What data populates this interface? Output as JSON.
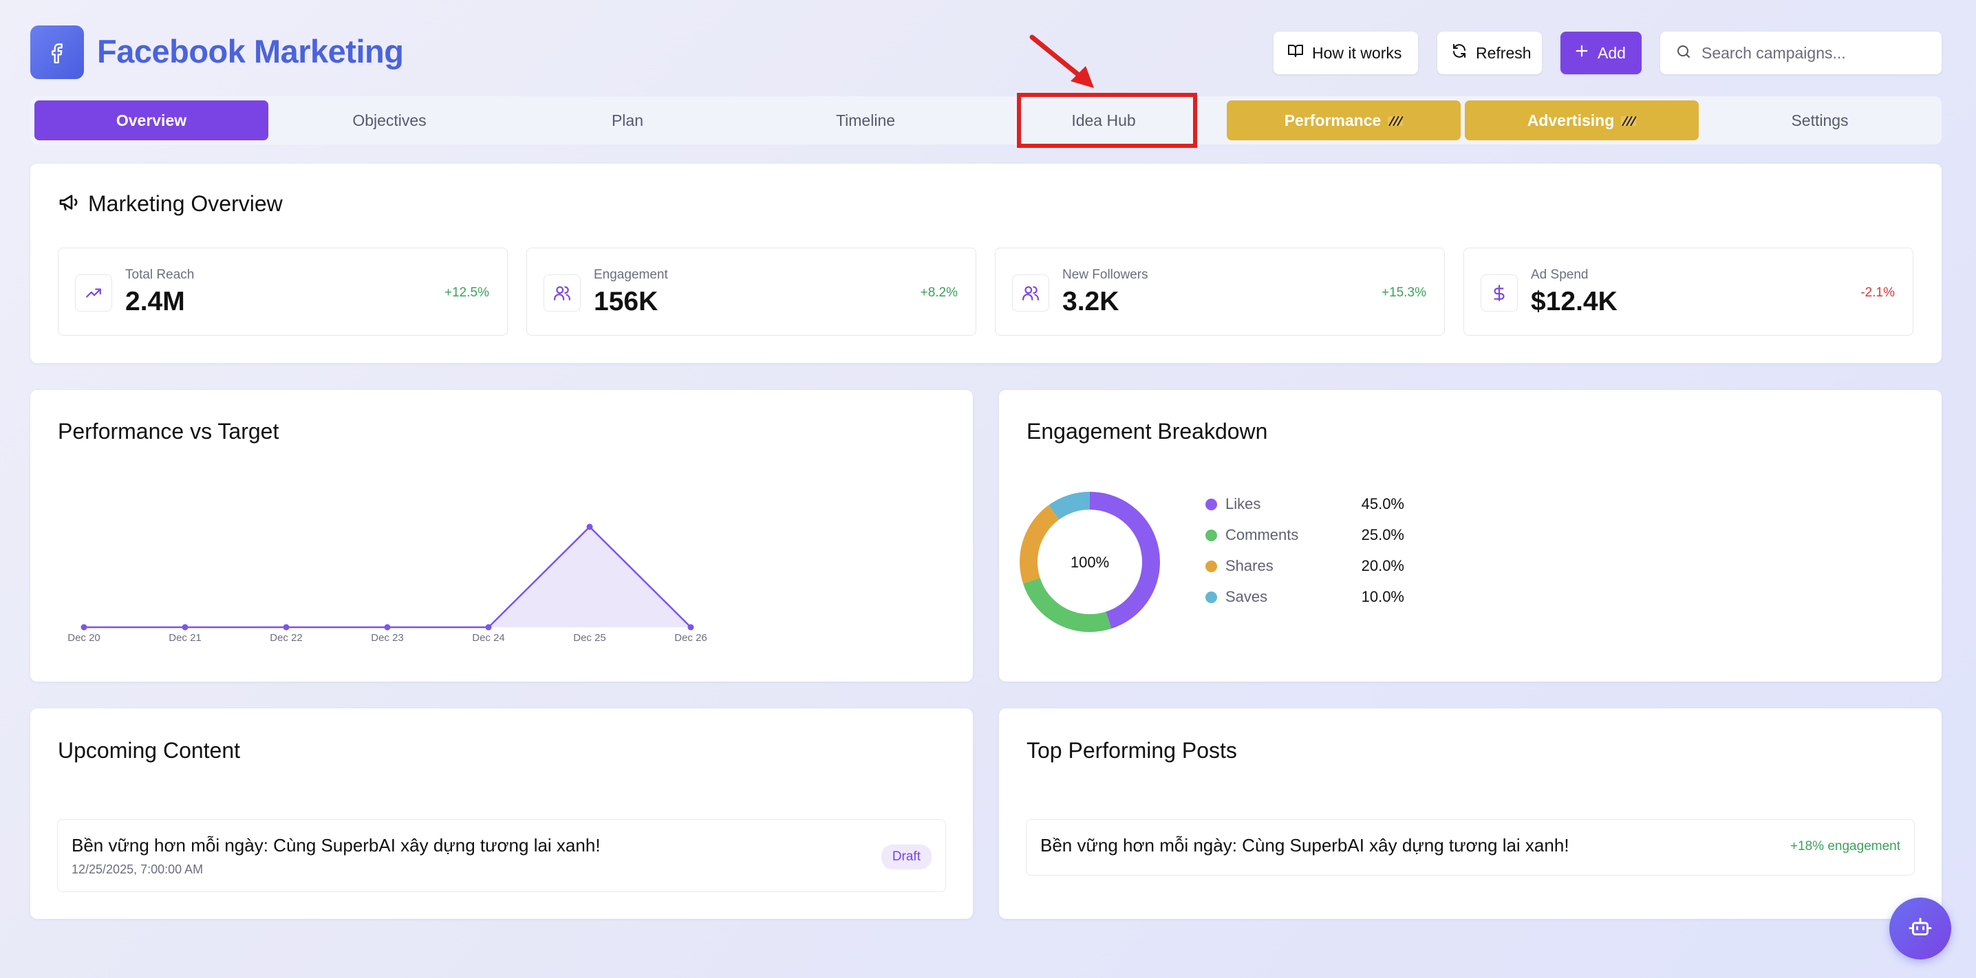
{
  "header": {
    "title": "Facebook Marketing",
    "how_it_works": "How it works",
    "refresh": "Refresh",
    "add": "Add",
    "search_placeholder": "Search campaigns..."
  },
  "tabs": [
    {
      "label": "Overview",
      "active": true
    },
    {
      "label": "Objectives"
    },
    {
      "label": "Plan"
    },
    {
      "label": "Timeline"
    },
    {
      "label": "Idea Hub",
      "highlighted": true
    },
    {
      "label": "Performance",
      "premium": true
    },
    {
      "label": "Advertising",
      "premium": true
    },
    {
      "label": "Settings"
    }
  ],
  "overview": {
    "title": "Marketing Overview",
    "stats": [
      {
        "label": "Total Reach",
        "value": "2.4M",
        "delta": "+12.5%",
        "icon": "trending-up-icon"
      },
      {
        "label": "Engagement",
        "value": "156K",
        "delta": "+8.2%",
        "icon": "users-icon"
      },
      {
        "label": "New Followers",
        "value": "3.2K",
        "delta": "+15.3%",
        "icon": "users-icon"
      },
      {
        "label": "Ad Spend",
        "value": "$12.4K",
        "delta": "-2.1%",
        "icon": "dollar-icon"
      }
    ]
  },
  "perf": {
    "title": "Performance vs Target"
  },
  "engagement": {
    "title": "Engagement Breakdown",
    "center_label": "100%"
  },
  "chart_data": [
    {
      "type": "area",
      "x": [
        "Dec 20",
        "Dec 21",
        "Dec 22",
        "Dec 23",
        "Dec 24",
        "Dec 25",
        "Dec 26"
      ],
      "values": [
        0,
        0,
        0,
        0,
        0,
        1,
        0
      ],
      "ylim": [
        0,
        1
      ],
      "grid": false,
      "color": "#7a55ee"
    },
    {
      "type": "pie",
      "categories": [
        "Likes",
        "Comments",
        "Shares",
        "Saves"
      ],
      "values": [
        45.0,
        25.0,
        20.0,
        10.0
      ],
      "labels": [
        "45.0%",
        "25.0%",
        "20.0%",
        "10.0%"
      ],
      "colors": [
        "#8b5cf0",
        "#5fc46a",
        "#e3a43b",
        "#63b6d6"
      ],
      "legend": "right"
    }
  ],
  "upcoming": {
    "title": "Upcoming Content",
    "items": [
      {
        "title": "Bền vững hơn mỗi ngày: Cùng SuperbAI xây dựng tương lai xanh!",
        "date": "12/25/2025, 7:00:00 AM",
        "status": "Draft"
      }
    ]
  },
  "top_posts": {
    "title": "Top Performing Posts",
    "items": [
      {
        "title": "Bền vững hơn mỗi ngày: Cùng SuperbAI xây dựng tương lai xanh!",
        "metric": "+18% engagement"
      }
    ]
  },
  "colors": {
    "accent": "#7a44e4",
    "title_blue": "#4a63dc",
    "premium_gold": "#ddb43c",
    "highlight_red": "#e02020"
  }
}
